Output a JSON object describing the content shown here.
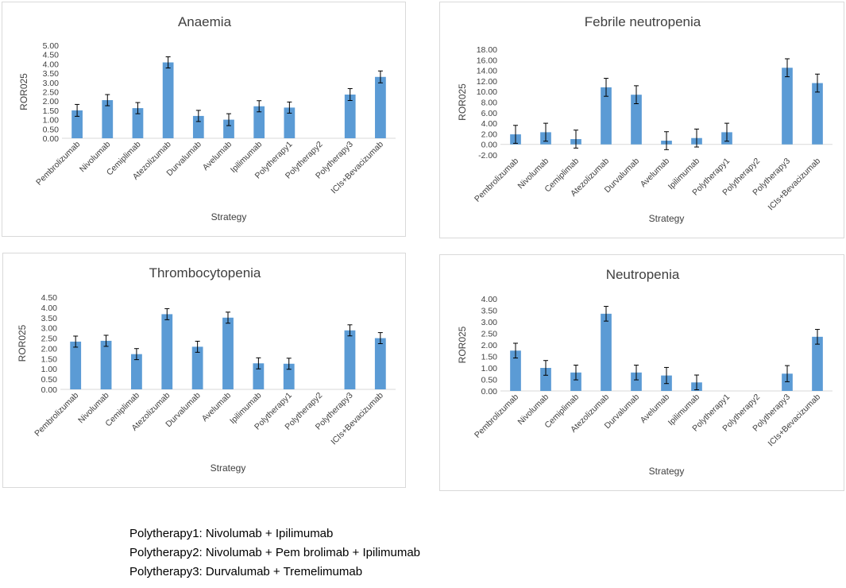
{
  "chart_data": [
    {
      "type": "bar",
      "title": "Anaemia",
      "xlabel": "Strategy",
      "ylabel": "ROR025",
      "ylim": [
        0,
        5
      ],
      "ystep": 0.5,
      "categories": [
        "Pembrolizumab",
        "Nivolumab",
        "Cemiplimab",
        "Atezolizumab",
        "Durvalumab",
        "Avelumab",
        "Ipilimumab",
        "Polytherapy1",
        "Polytherapy2",
        "Polytherapy3",
        "ICIs+Bevacizumab"
      ],
      "values": [
        1.5,
        2.05,
        1.62,
        4.08,
        1.2,
        1.0,
        1.72,
        1.65,
        null,
        2.35,
        3.3
      ],
      "errors": [
        0.32,
        0.3,
        0.3,
        0.3,
        0.3,
        0.32,
        0.3,
        0.3,
        null,
        0.32,
        0.32
      ]
    },
    {
      "type": "bar",
      "title": "Febrile neutropenia",
      "xlabel": "Strategy",
      "ylabel": "ROR025",
      "ylim": [
        -2,
        18
      ],
      "ystep": 2,
      "categories": [
        "Pembrolizumab",
        "Nivolumab",
        "Cemiplimab",
        "Atezolizumab",
        "Durvalumab",
        "Avelumab",
        "Ipilimumab",
        "Polytherapy1",
        "Polytherapy2",
        "Polytherapy3",
        "ICIs+Bevacizumab"
      ],
      "values": [
        1.9,
        2.3,
        1.0,
        10.8,
        9.4,
        0.7,
        1.2,
        2.3,
        null,
        14.5,
        11.6
      ],
      "errors": [
        1.7,
        1.7,
        1.7,
        1.7,
        1.7,
        1.7,
        1.7,
        1.7,
        null,
        1.7,
        1.7
      ]
    },
    {
      "type": "bar",
      "title": "Thrombocytopenia",
      "xlabel": "Strategy",
      "ylabel": "ROR025",
      "ylim": [
        0,
        4.5
      ],
      "ystep": 0.5,
      "categories": [
        "Pembrolizumab",
        "Nivolumab",
        "Cemiplimab",
        "Atezolizumab",
        "Durvalumab",
        "Avelumab",
        "Ipilimumab",
        "Polytherapy1",
        "Polytherapy2",
        "Polytherapy3",
        "ICIs+Bevacizumab"
      ],
      "values": [
        2.33,
        2.37,
        1.72,
        3.67,
        2.08,
        3.5,
        1.27,
        1.25,
        null,
        2.88,
        2.5
      ],
      "errors": [
        0.27,
        0.27,
        0.27,
        0.27,
        0.27,
        0.27,
        0.27,
        0.27,
        null,
        0.27,
        0.27
      ]
    },
    {
      "type": "bar",
      "title": "Neutropenia",
      "xlabel": "Strategy",
      "ylabel": "ROR025",
      "ylim": [
        0,
        4
      ],
      "ystep": 0.5,
      "categories": [
        "Pembrolizumab",
        "Nivolumab",
        "Cemiplimab",
        "Atezolizumab",
        "Durvalumab",
        "Avelumab",
        "Ipilimumab",
        "Polytherapy1",
        "Polytherapy2",
        "Polytherapy3",
        "ICIs+Bevacizumab"
      ],
      "values": [
        1.75,
        1.0,
        0.8,
        3.35,
        0.8,
        0.67,
        0.37,
        null,
        null,
        0.75,
        2.35
      ],
      "errors": [
        0.32,
        0.32,
        0.32,
        0.32,
        0.32,
        0.35,
        0.32,
        null,
        null,
        0.35,
        0.32
      ]
    }
  ],
  "bar_color": "#5b9bd5",
  "legend_lines": [
    "Polytherapy1: Nivolumab + Ipilimumab",
    "Polytherapy2: Nivolumab + Pem brolimab + Ipilimumab",
    "Polytherapy3: Durvalumab + Tremelimumab"
  ]
}
